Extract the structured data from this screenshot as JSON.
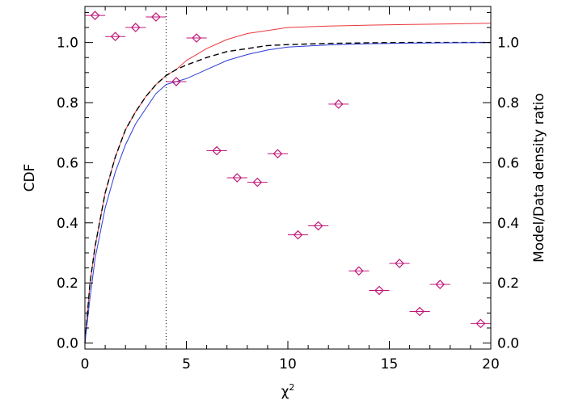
{
  "chart_data": {
    "type": "line",
    "xlabel": "χ",
    "xlabel_superscript": "2",
    "ylabel_left": "CDF",
    "ylabel_right": "Model/Data  density  ratio",
    "xlim": [
      0,
      20
    ],
    "ylim": [
      -0.02,
      1.12
    ],
    "xticks": [
      0,
      5,
      10,
      15,
      20
    ],
    "xtick_labels": [
      "0",
      "5",
      "10",
      "15",
      "20"
    ],
    "yticks": [
      0.0,
      0.2,
      0.4,
      0.6,
      0.8,
      1.0
    ],
    "ytick_labels": [
      "0.0",
      "0.2",
      "0.4",
      "0.6",
      "0.8",
      "1.0"
    ],
    "grid": false,
    "vline_x": 4,
    "series": [
      {
        "color": "#e8383d",
        "style": "solid",
        "x": [
          0,
          0.25,
          0.5,
          1,
          1.5,
          2,
          2.5,
          3,
          3.5,
          4,
          4.5,
          5,
          6,
          7,
          8,
          9,
          10,
          12,
          14,
          16,
          18,
          20
        ],
        "y": [
          0,
          0.2,
          0.32,
          0.5,
          0.62,
          0.71,
          0.77,
          0.82,
          0.86,
          0.89,
          0.91,
          0.94,
          0.98,
          1.01,
          1.03,
          1.04,
          1.05,
          1.055,
          1.058,
          1.06,
          1.062,
          1.064
        ]
      },
      {
        "color": "#000000",
        "style": "dashed",
        "x": [
          0,
          0.25,
          0.5,
          1,
          1.5,
          2,
          2.5,
          3,
          3.5,
          4,
          4.5,
          5,
          6,
          7,
          8,
          9,
          10,
          12,
          14,
          16,
          18,
          20
        ],
        "y": [
          0,
          0.2,
          0.32,
          0.5,
          0.62,
          0.71,
          0.77,
          0.82,
          0.86,
          0.89,
          0.91,
          0.925,
          0.95,
          0.97,
          0.98,
          0.99,
          0.993,
          0.997,
          0.999,
          1.0,
          1.0,
          1.0
        ]
      },
      {
        "color": "#2b3bd6",
        "style": "solid",
        "x": [
          0,
          0.25,
          0.5,
          1,
          1.5,
          2,
          2.5,
          3,
          3.5,
          4,
          4.5,
          5,
          6,
          7,
          8,
          9,
          10,
          12,
          14,
          16,
          18,
          20
        ],
        "y": [
          0,
          0.15,
          0.28,
          0.45,
          0.57,
          0.66,
          0.73,
          0.78,
          0.83,
          0.86,
          0.87,
          0.88,
          0.91,
          0.94,
          0.96,
          0.975,
          0.985,
          0.992,
          0.996,
          0.998,
          0.999,
          1.0
        ]
      }
    ],
    "ratio_points": {
      "color": "#c0187a",
      "x": [
        0.5,
        1.5,
        2.5,
        3.5,
        4.5,
        5.5,
        6.5,
        7.5,
        8.5,
        9.5,
        10.5,
        11.5,
        12.5,
        13.5,
        14.5,
        15.5,
        16.5,
        17.5,
        19.5
      ],
      "y": [
        1.09,
        1.02,
        1.05,
        1.085,
        0.87,
        1.015,
        0.64,
        0.55,
        0.535,
        0.63,
        0.36,
        0.39,
        0.795,
        0.24,
        0.175,
        0.265,
        0.105,
        0.195,
        0.065
      ],
      "xerr": 0.5
    }
  }
}
